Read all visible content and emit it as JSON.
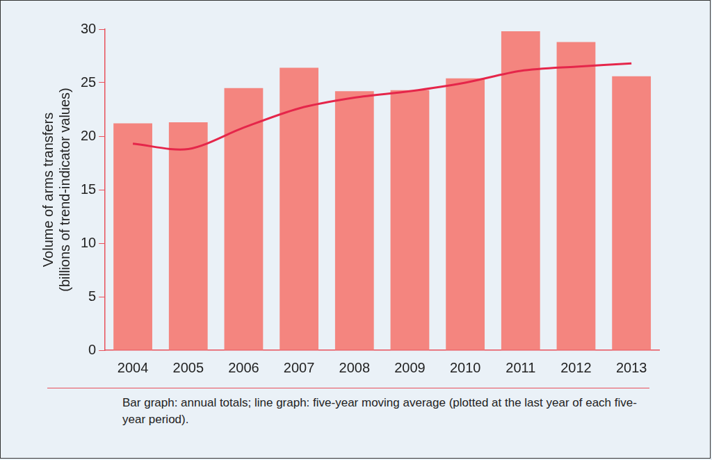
{
  "chart_data": {
    "type": "bar",
    "y_label": [
      "Volume of arms transfers",
      "(billions of trend-indicator values)"
    ],
    "caption": "Bar graph: annual totals; line graph: five-year moving average (plotted at the last year of each five-year period).",
    "categories": [
      "2004",
      "2005",
      "2006",
      "2007",
      "2008",
      "2009",
      "2010",
      "2011",
      "2012",
      "2013"
    ],
    "series": [
      {
        "type": "bar",
        "color": "#f4857f",
        "values": [
          21.2,
          21.3,
          24.5,
          26.4,
          24.2,
          24.3,
          25.4,
          29.8,
          28.8,
          25.6
        ]
      },
      {
        "type": "line",
        "color": "#e5264a",
        "marker": "none",
        "line_style": "solid",
        "values": [
          19.3,
          18.8,
          20.8,
          22.6,
          23.6,
          24.2,
          25.0,
          26.1,
          26.5,
          26.8
        ]
      }
    ],
    "ylim": [
      0,
      30
    ],
    "yticks": [
      0,
      5,
      10,
      15,
      20,
      25,
      30
    ],
    "grid": false
  }
}
